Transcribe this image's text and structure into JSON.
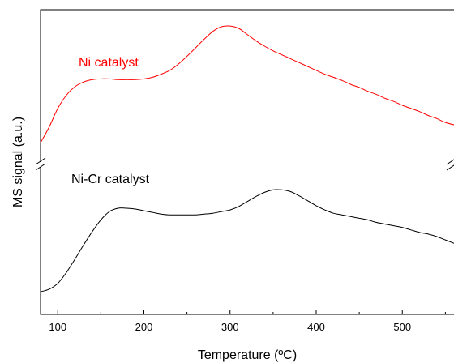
{
  "chart_data": {
    "type": "line",
    "xlabel": "Temperature (ºC)",
    "ylabel": "MS signal (a.u.)",
    "xlim": [
      80,
      560
    ],
    "x_ticks": [
      100,
      200,
      300,
      400,
      500
    ],
    "y_axis": "arbitrary units, no tick labels, broken axis",
    "grid": false,
    "series": [
      {
        "name": "Ni catalyst",
        "color": "#ff0000",
        "label_position": "upper-left",
        "x": [
          80,
          90,
          100,
          110,
          120,
          130,
          140,
          150,
          160,
          170,
          180,
          190,
          200,
          210,
          220,
          230,
          240,
          250,
          260,
          270,
          280,
          290,
          300,
          310,
          320,
          330,
          340,
          350,
          360,
          370,
          380,
          390,
          400,
          410,
          420,
          430,
          440,
          450,
          460,
          470,
          480,
          490,
          500,
          510,
          520,
          530,
          540,
          550,
          560
        ],
        "values": [
          0.02,
          0.22,
          0.46,
          0.63,
          0.74,
          0.8,
          0.83,
          0.84,
          0.84,
          0.83,
          0.83,
          0.83,
          0.84,
          0.86,
          0.9,
          0.95,
          1.03,
          1.13,
          1.24,
          1.35,
          1.45,
          1.51,
          1.52,
          1.49,
          1.41,
          1.33,
          1.26,
          1.2,
          1.15,
          1.1,
          1.05,
          1.0,
          0.95,
          0.9,
          0.86,
          0.82,
          0.77,
          0.73,
          0.68,
          0.64,
          0.59,
          0.55,
          0.5,
          0.46,
          0.42,
          0.37,
          0.33,
          0.28,
          0.25
        ]
      },
      {
        "name": "Ni-Cr catalyst",
        "color": "#000000",
        "label_position": "middle-left",
        "x": [
          80,
          90,
          100,
          110,
          120,
          130,
          140,
          150,
          160,
          170,
          180,
          190,
          200,
          210,
          220,
          230,
          240,
          250,
          260,
          270,
          280,
          290,
          300,
          310,
          320,
          330,
          340,
          350,
          360,
          370,
          380,
          390,
          400,
          410,
          420,
          430,
          440,
          450,
          460,
          470,
          480,
          490,
          500,
          510,
          520,
          530,
          540,
          550,
          560
        ],
        "values": [
          0.0,
          0.03,
          0.1,
          0.23,
          0.39,
          0.56,
          0.72,
          0.86,
          0.96,
          1.0,
          1.0,
          0.99,
          0.97,
          0.95,
          0.93,
          0.92,
          0.92,
          0.92,
          0.92,
          0.93,
          0.94,
          0.96,
          0.98,
          1.02,
          1.08,
          1.14,
          1.19,
          1.22,
          1.22,
          1.2,
          1.15,
          1.09,
          1.03,
          0.98,
          0.94,
          0.92,
          0.9,
          0.88,
          0.86,
          0.83,
          0.81,
          0.79,
          0.77,
          0.74,
          0.71,
          0.69,
          0.66,
          0.62,
          0.58
        ]
      }
    ]
  }
}
